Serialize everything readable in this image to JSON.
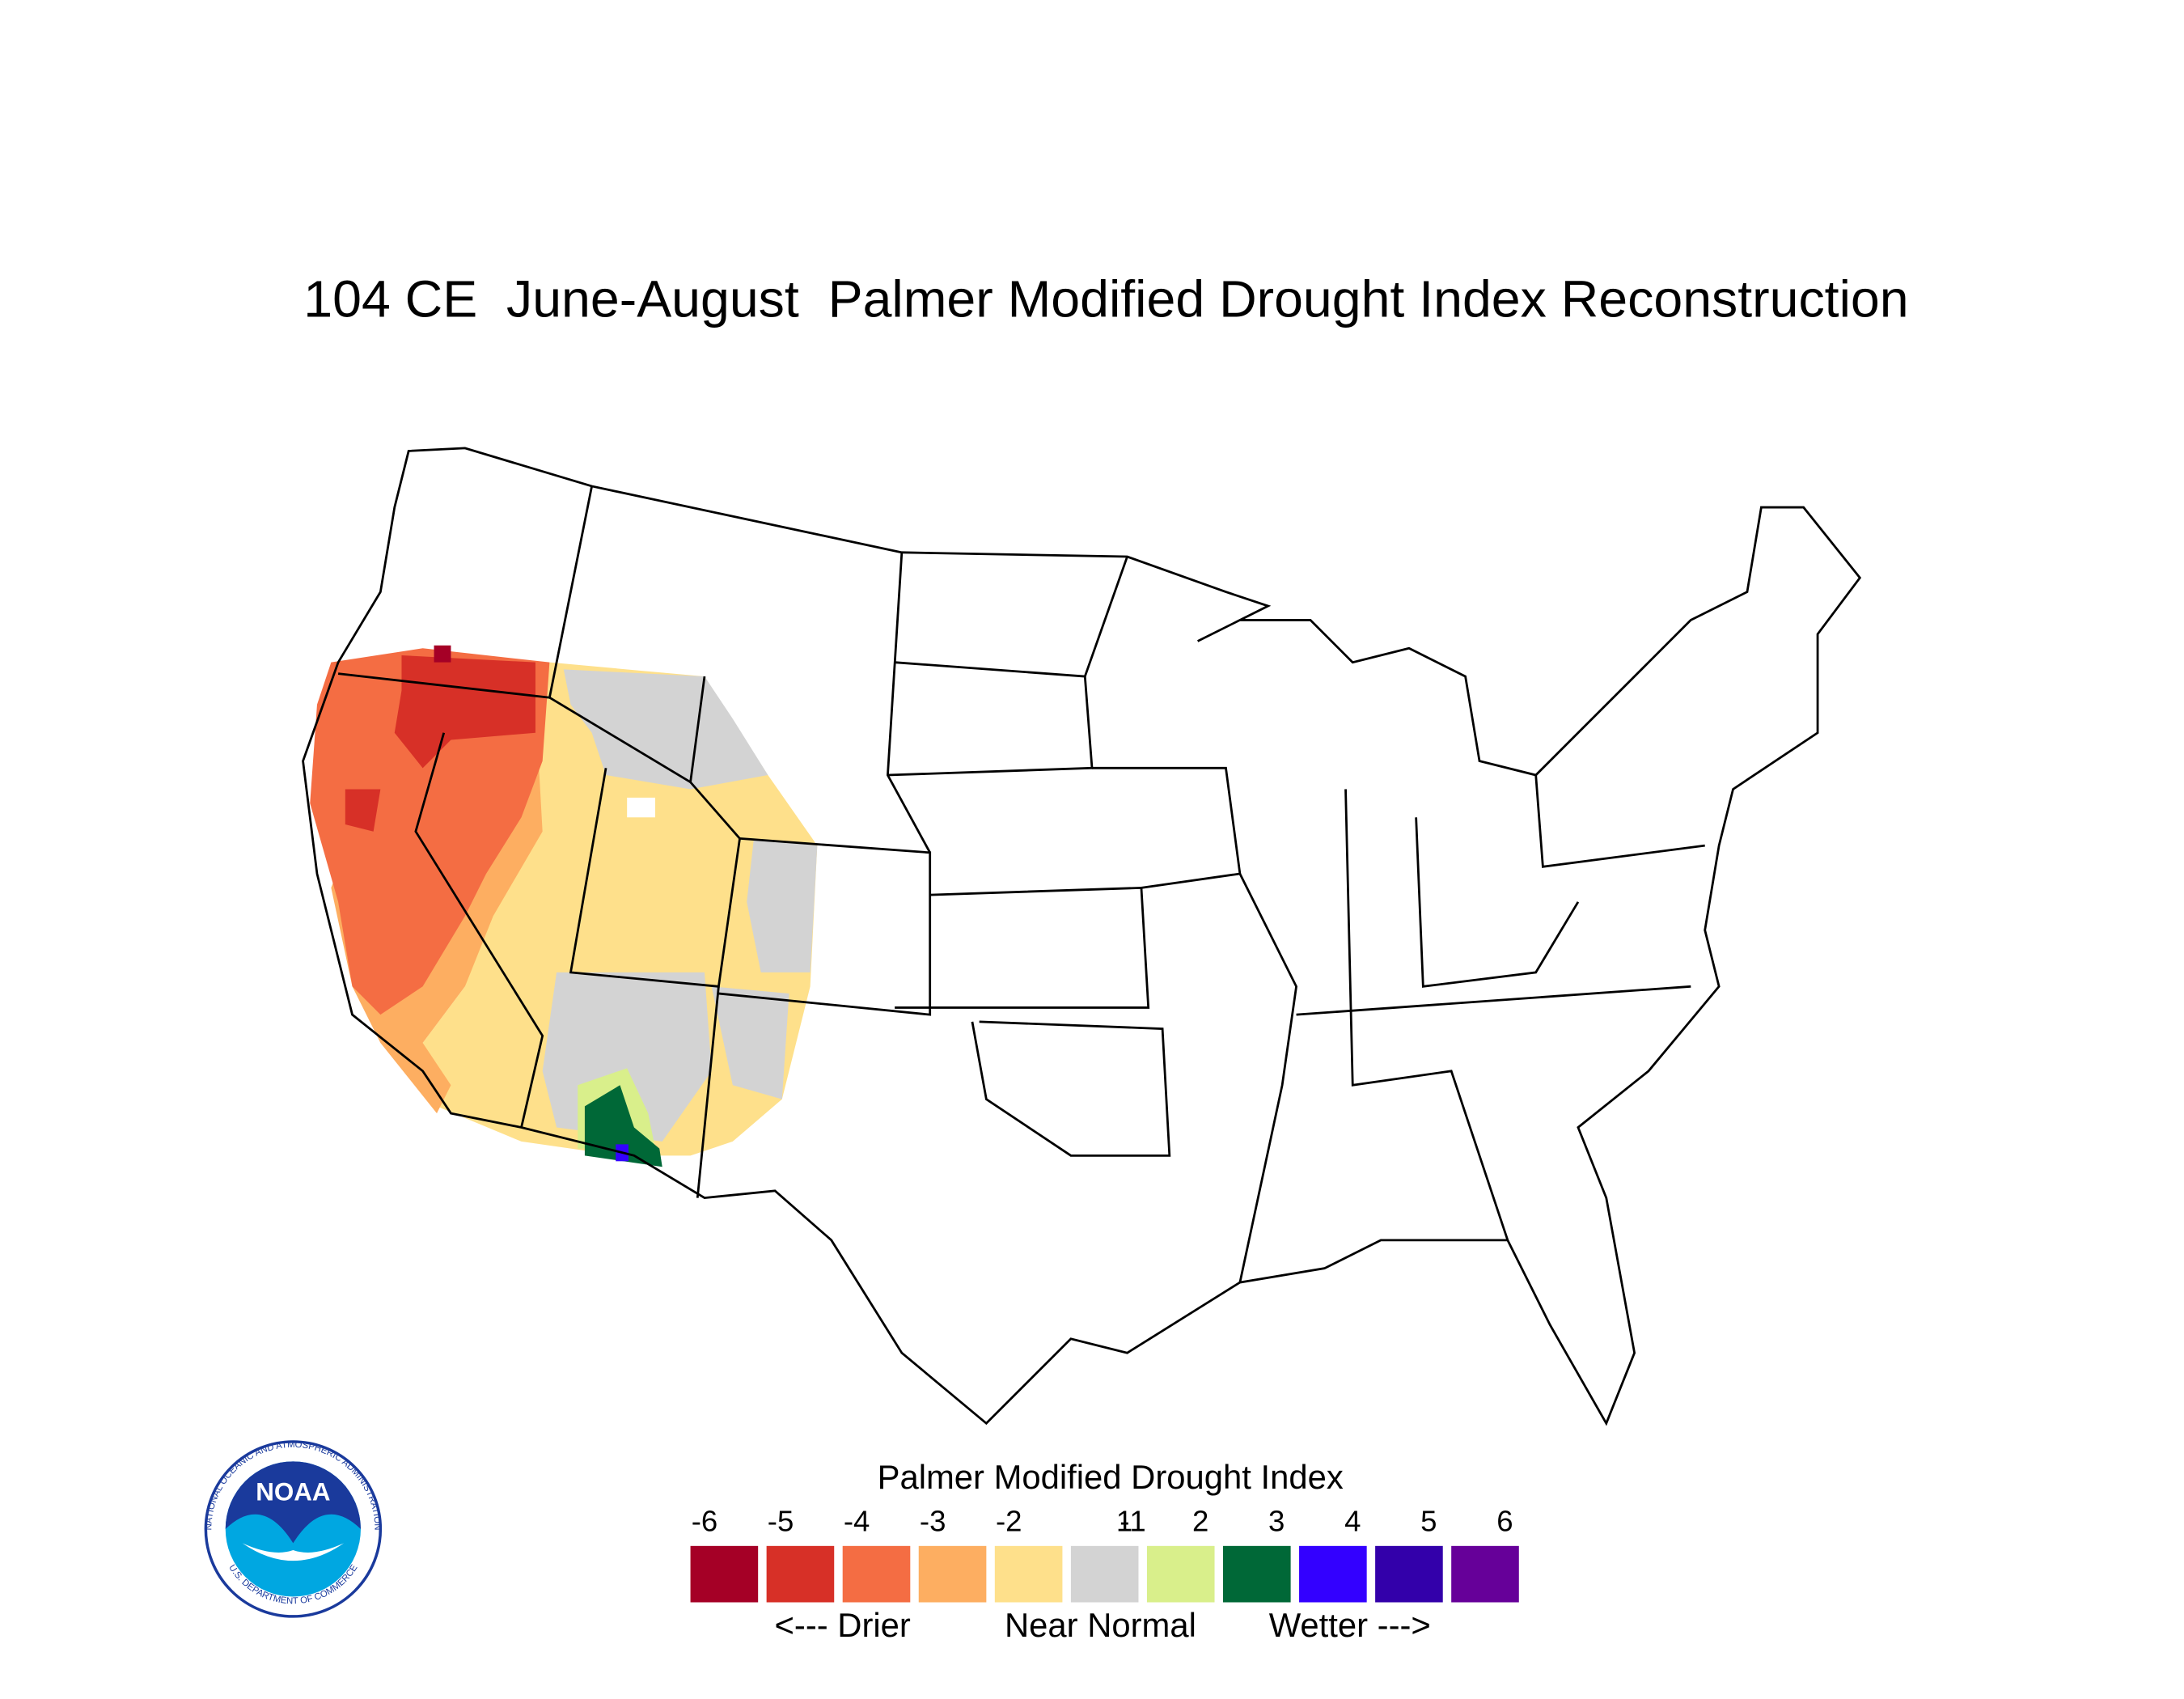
{
  "title": "104 CE  June-August  Palmer Modified Drought Index Reconstruction",
  "legend": {
    "title": "Palmer Modified Drought Index",
    "ticks": [
      -6,
      -5,
      -4,
      -3,
      -2,
      -1,
      1,
      2,
      3,
      4,
      5,
      6
    ],
    "colors": [
      "#a50026",
      "#d73027",
      "#f46d43",
      "#fdae61",
      "#fee08b",
      "#d3d3d3",
      "#d9ef8b",
      "#006837",
      "#3300ff",
      "#3300aa",
      "#660099"
    ],
    "labels": [
      "<--- Drier",
      "Near Normal",
      "Wetter --->"
    ]
  },
  "logo": {
    "name": "NOAA",
    "ring_top": "NATIONAL OCEANIC AND ATMOSPHERIC ADMINISTRATION",
    "ring_bottom": "U.S. DEPARTMENT OF COMMERCE"
  }
}
